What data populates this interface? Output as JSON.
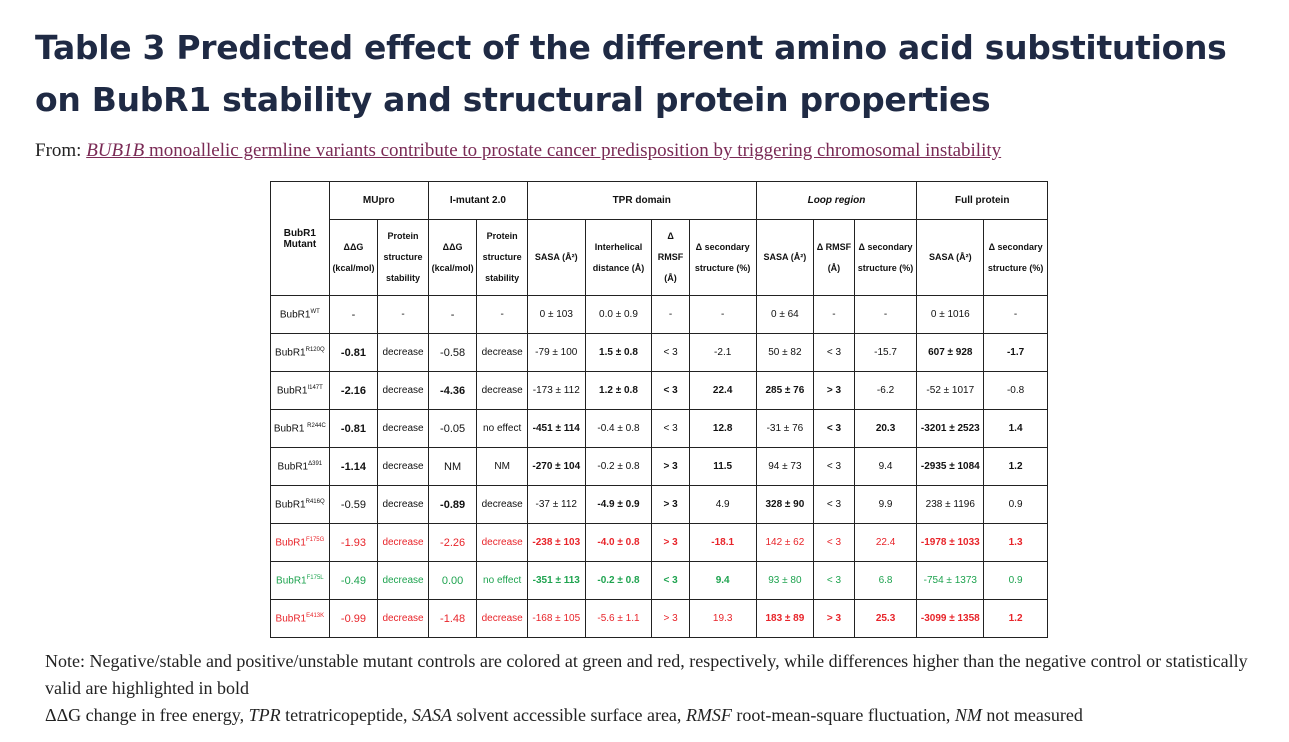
{
  "title": "Table 3 Predicted effect of the different amino acid substitutions on BubR1 stability and structural protein properties",
  "from_label": "From:",
  "source_link": {
    "italic": "BUB1B",
    "rest": " monoallelic germline variants contribute to prostate cancer predisposition by triggering chromosomal instability"
  },
  "table": {
    "row_header": "BubR1 Mutant",
    "groups": [
      "MUpro",
      "I-mutant 2.0",
      "TPR domain",
      "Loop region",
      "Full protein"
    ],
    "columns": [
      "ΔΔG (kcal/mol)",
      "Protein structure stability",
      "ΔΔG (kcal/mol)",
      "Protein structure stability",
      "SASA (Å²)",
      "Interhelical distance (Å)",
      "Δ RMSF (Å)",
      "Δ secondary structure (%)",
      "SASA (Å²)",
      "Δ RMSF (Å)",
      "Δ secondary structure (%)",
      "SASA (Å²)",
      "Δ secondary structure (%)"
    ],
    "rows": [
      {
        "mutant": "BubR1",
        "sup": "WT",
        "color": "",
        "cells": [
          "-",
          "-",
          "-",
          "-",
          "0 ± 103",
          "0.0 ± 0.9",
          "-",
          "-",
          "0 ± 64",
          "-",
          "-",
          "0 ± 1016",
          "-"
        ],
        "bold": []
      },
      {
        "mutant": "BubR1",
        "sup": "R120Q",
        "color": "",
        "cells": [
          "-0.81",
          "decrease",
          "-0.58",
          "decrease",
          "-79 ± 100",
          "1.5 ± 0.8",
          "< 3",
          "-2.1",
          "50 ± 82",
          "< 3",
          "-15.7",
          "607 ± 928",
          "-1.7"
        ],
        "bold": [
          0,
          5,
          11,
          12
        ]
      },
      {
        "mutant": "BubR1",
        "sup": "I147T",
        "color": "",
        "cells": [
          "-2.16",
          "decrease",
          "-4.36",
          "decrease",
          "-173 ± 112",
          "1.2 ± 0.8",
          "< 3",
          "22.4",
          "285 ± 76",
          "> 3",
          "-6.2",
          "-52 ± 1017",
          "-0.8"
        ],
        "bold": [
          0,
          2,
          5,
          6,
          7,
          8,
          9
        ]
      },
      {
        "mutant": "BubR1 ",
        "sup": "R244C",
        "color": "",
        "cells": [
          "-0.81",
          "decrease",
          "-0.05",
          "no effect",
          "-451 ± 114",
          "-0.4 ± 0.8",
          "< 3",
          "12.8",
          "-31 ± 76",
          "< 3",
          "20.3",
          "-3201 ± 2523",
          "1.4"
        ],
        "bold": [
          0,
          4,
          7,
          9,
          10,
          11,
          12
        ]
      },
      {
        "mutant": "BubR1",
        "sup": "Δ391",
        "color": "",
        "cells": [
          "-1.14",
          "decrease",
          "NM",
          "NM",
          "-270 ± 104",
          "-0.2 ± 0.8",
          "> 3",
          "11.5",
          "94 ± 73",
          "< 3",
          "9.4",
          "-2935 ± 1084",
          "1.2"
        ],
        "bold": [
          0,
          4,
          6,
          7,
          11,
          12
        ]
      },
      {
        "mutant": "BubR1",
        "sup": "R416Q",
        "color": "",
        "cells": [
          "-0.59",
          "decrease",
          "-0.89",
          "decrease",
          "-37 ± 112",
          "-4.9 ± 0.9",
          "> 3",
          "4.9",
          "328 ± 90",
          "< 3",
          "9.9",
          "238 ± 1196",
          "0.9"
        ],
        "bold": [
          2,
          5,
          6,
          8
        ]
      },
      {
        "mutant": "BubR1",
        "sup": "F175G",
        "color": "red",
        "cells": [
          "-1.93",
          "decrease",
          "-2.26",
          "decrease",
          "-238 ± 103",
          "-4.0 ± 0.8",
          "> 3",
          "-18.1",
          "142 ± 62",
          "< 3",
          "22.4",
          "-1978 ± 1033",
          "1.3"
        ],
        "bold": [
          4,
          5,
          6,
          7,
          11,
          12
        ]
      },
      {
        "mutant": "BubR1",
        "sup": "F175L",
        "color": "green",
        "cells": [
          "-0.49",
          "decrease",
          "0.00",
          "no effect",
          "-351 ± 113",
          "-0.2 ± 0.8",
          "< 3",
          "9.4",
          "93 ± 80",
          "< 3",
          "6.8",
          "-754 ± 1373",
          "0.9"
        ],
        "bold": [
          4,
          5,
          6,
          7
        ]
      },
      {
        "mutant": "BubR1",
        "sup": "E413K",
        "color": "red",
        "cells": [
          "-0.99",
          "decrease",
          "-1.48",
          "decrease",
          "-168 ± 105",
          "-5.6 ± 1.1",
          "> 3",
          "19.3",
          "183 ± 89",
          "> 3",
          "25.3",
          "-3099 ± 1358",
          "1.2"
        ],
        "bold": [
          8,
          9,
          10,
          11,
          12
        ]
      }
    ]
  },
  "note_line1": "Note: Negative/stable and positive/unstable mutant controls are colored at green and red, respectively, while differences higher than the negative control or statistically valid are highlighted in bold",
  "abbreviations": [
    {
      "term": "ΔΔG",
      "italic": false,
      "def": " change in free energy, "
    },
    {
      "term": "TPR",
      "italic": true,
      "def": " tetratricopeptide, "
    },
    {
      "term": "SASA",
      "italic": true,
      "def": " solvent accessible surface area, "
    },
    {
      "term": "RMSF",
      "italic": true,
      "def": " root-mean-square fluctuation, "
    },
    {
      "term": "NM",
      "italic": true,
      "def": " not measured"
    }
  ]
}
